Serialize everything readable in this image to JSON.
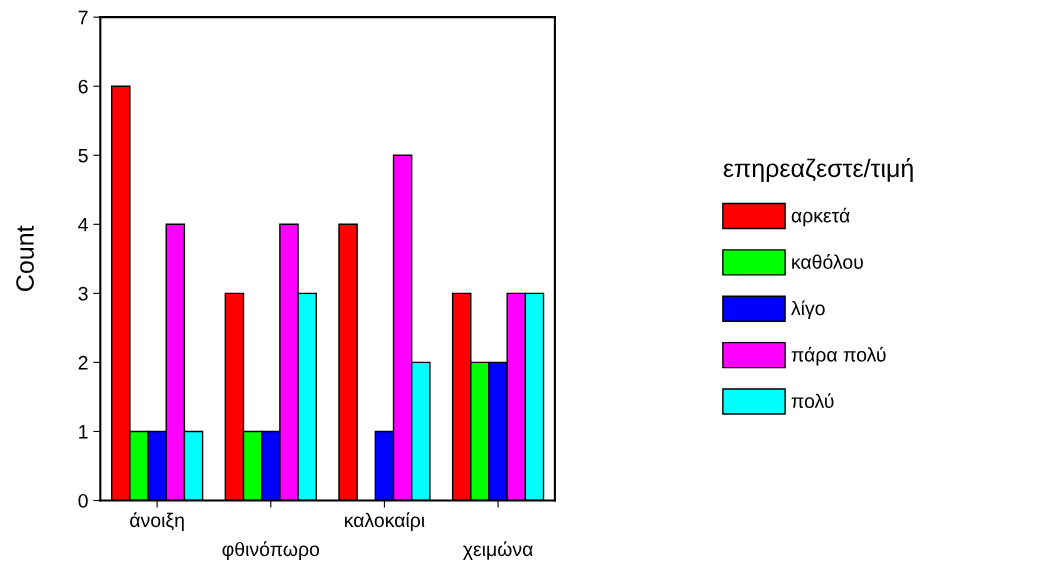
{
  "chart_data": {
    "type": "bar",
    "ylabel": "Count",
    "legend_title": "επηρεαζεστε/τιμή",
    "categories": [
      "άνοιξη",
      "φθινόπωρο",
      "καλοκαίρι",
      "χειμώνα"
    ],
    "series": [
      {
        "name": "αρκετά",
        "color": "#ff0000",
        "values": [
          6,
          3,
          4,
          3
        ]
      },
      {
        "name": "καθόλου",
        "color": "#00ff00",
        "values": [
          1,
          1,
          null,
          2
        ]
      },
      {
        "name": "λίγο",
        "color": "#0000ff",
        "values": [
          1,
          1,
          1,
          2
        ]
      },
      {
        "name": "πάρα πολύ",
        "color": "#ff00ff",
        "values": [
          4,
          4,
          5,
          3
        ]
      },
      {
        "name": "πολύ",
        "color": "#00ffff",
        "values": [
          1,
          3,
          2,
          3
        ]
      }
    ],
    "ylim": [
      0,
      7
    ],
    "yticks": [
      0,
      1,
      2,
      3,
      4,
      5,
      6,
      7
    ],
    "grid": false,
    "legend": "right"
  }
}
